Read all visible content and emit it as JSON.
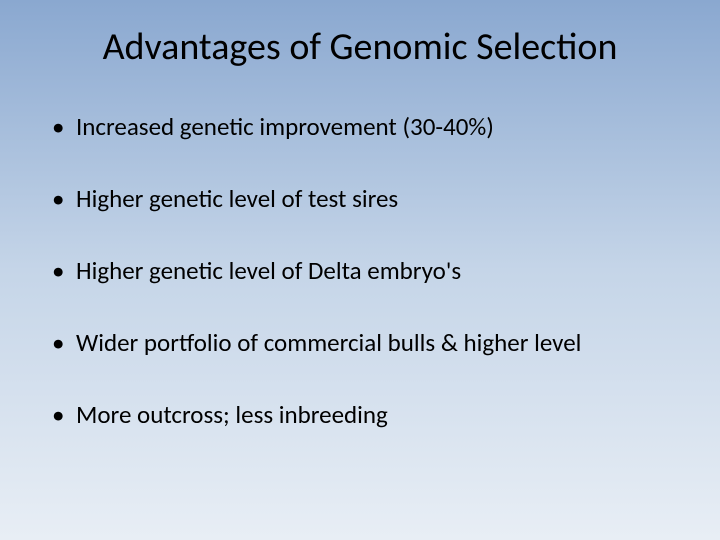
{
  "slide": {
    "title": "Advantages of Genomic Selection",
    "bullets": [
      "Increased genetic improvement (30-40%)",
      "Higher genetic level of test sires",
      "Higher genetic level of Delta embryo's",
      "Wider portfolio of commercial bulls & higher level",
      "More outcross; less inbreeding"
    ],
    "style": {
      "background_gradient_top": "#8aa8d0",
      "background_gradient_mid": "#c5d5e8",
      "background_gradient_bottom": "#e8eef5",
      "title_color": "#000000",
      "title_fontsize": 38,
      "title_weight": 400,
      "bullet_color": "#000000",
      "bullet_fontsize": 25,
      "bullet_spacing": 42,
      "font_family": "Calibri"
    }
  }
}
